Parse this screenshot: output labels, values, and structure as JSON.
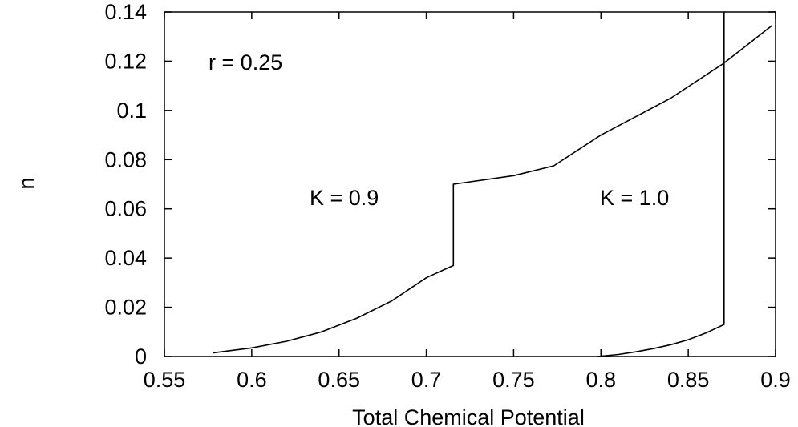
{
  "chart_data": {
    "type": "line",
    "title": "",
    "xlabel": "Total Chemical Potential",
    "ylabel": "n",
    "xlim": [
      0.55,
      0.9
    ],
    "ylim": [
      0,
      0.14
    ],
    "x_ticks": [
      "0.55",
      "0.6",
      "0.65",
      "0.7",
      "0.75",
      "0.8",
      "0.85",
      "0.9"
    ],
    "y_ticks": [
      "0",
      "0.02",
      "0.04",
      "0.06",
      "0.08",
      "0.1",
      "0.12",
      "0.14"
    ],
    "grid": false,
    "annotations": [
      "r = 0.25",
      "K = 0.9",
      "K = 1.0"
    ],
    "series": [
      {
        "x": [
          0.578,
          0.6,
          0.62,
          0.64,
          0.66,
          0.68,
          0.7,
          0.7155,
          0.7155,
          0.75,
          0.773,
          0.8,
          0.84,
          0.87,
          0.898
        ],
        "y": [
          0.0015,
          0.0035,
          0.0062,
          0.01,
          0.0155,
          0.0225,
          0.032,
          0.037,
          0.07,
          0.0735,
          0.0775,
          0.09,
          0.105,
          0.119,
          0.1345
        ]
      },
      {
        "x": [
          0.798,
          0.81,
          0.82,
          0.83,
          0.84,
          0.85,
          0.86,
          0.8705,
          0.8705
        ],
        "y": [
          0.0,
          0.0008,
          0.0019,
          0.0032,
          0.0048,
          0.0068,
          0.0095,
          0.013,
          0.14
        ]
      }
    ]
  }
}
